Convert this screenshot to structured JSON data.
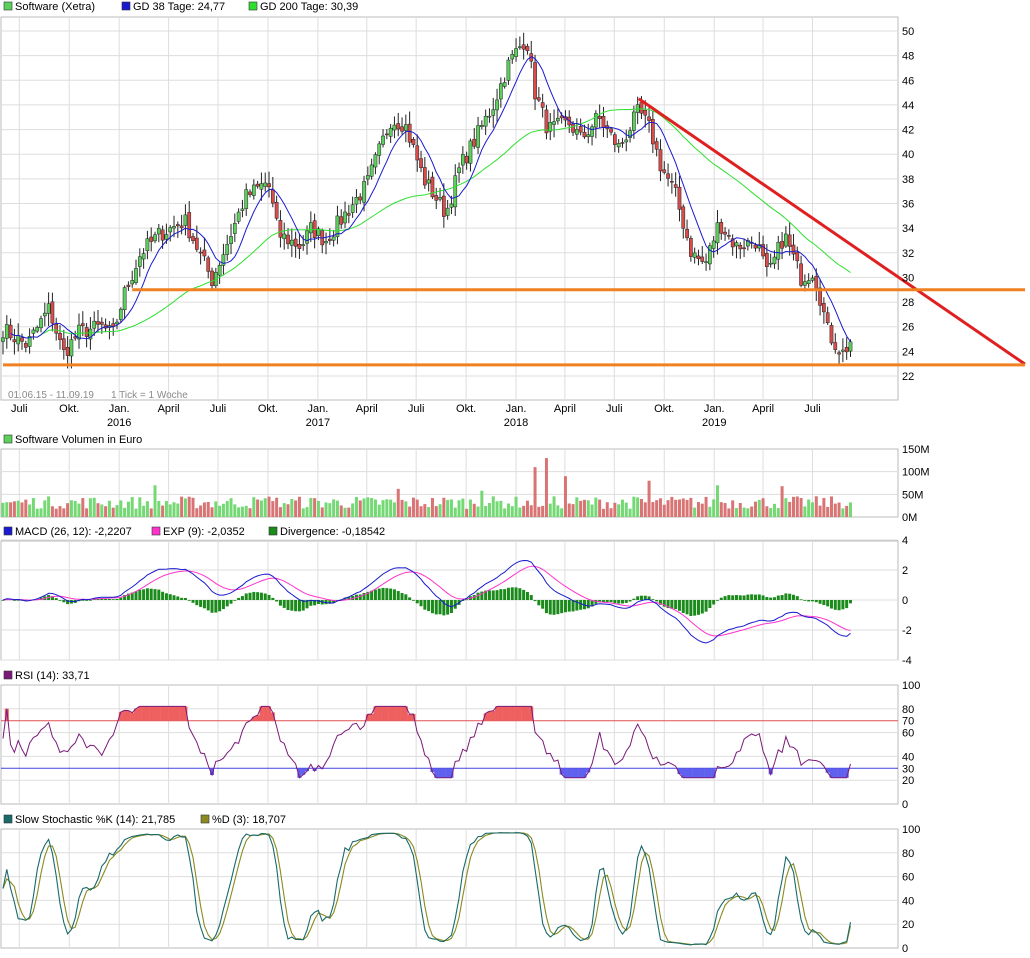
{
  "colors": {
    "up_candle": "#5ccf5c",
    "down_candle": "#d94c4c",
    "gd38": "#1a1ad0",
    "gd200": "#2ee02e",
    "trend_red": "#e02020",
    "support_orange": "#f08020",
    "macd": "#1a1ad0",
    "exp": "#ff33cc",
    "divergence": "#1a8a1a",
    "rsi": "#7a1a7a",
    "rsi_70": "#e05050",
    "rsi_30": "#4040e0",
    "stoch_k": "#1a6a6a",
    "stoch_d": "#8a8a20",
    "grid": "#dddddd"
  },
  "panels": {
    "price": {
      "legend": [
        {
          "label": "Software (Xetra)",
          "color": "#5ccf5c"
        },
        {
          "label": "GD 38 Tage: 24,77",
          "color": "#1a1ad0"
        },
        {
          "label": "GD 200 Tage: 30,39",
          "color": "#2ee02e"
        }
      ],
      "y_ticks": [
        "50",
        "48",
        "46",
        "44",
        "42",
        "40",
        "38",
        "36",
        "34",
        "32",
        "30",
        "28",
        "26",
        "24",
        "22"
      ],
      "date_range": "01.06.15 - 11.09.19",
      "tick_note": "1 Tick = 1 Woche",
      "x_labels": [
        "Juli",
        "Okt.",
        "Jan.",
        "April",
        "Juli",
        "Okt.",
        "Jan.",
        "April",
        "Juli",
        "Okt.",
        "Jan.",
        "April",
        "Juli",
        "Okt.",
        "Jan.",
        "April",
        "Juli"
      ],
      "year_labels": [
        "2016",
        "2017",
        "2018",
        "2019"
      ]
    },
    "volume": {
      "legend": [
        {
          "label": "Software Volumen in Euro",
          "color": "#5ccf5c"
        }
      ],
      "y_ticks": [
        "150M",
        "100M",
        "50M",
        "0M"
      ]
    },
    "macd": {
      "legend": [
        {
          "label": "MACD (26, 12): -2,2207",
          "color": "#1a1ad0"
        },
        {
          "label": "EXP (9): -2,0352",
          "color": "#ff33cc"
        },
        {
          "label": "Divergence: -0,18542",
          "color": "#1a8a1a"
        }
      ],
      "y_ticks": [
        "4",
        "2",
        "0",
        "-2",
        "-4"
      ]
    },
    "rsi": {
      "legend": [
        {
          "label": "RSI (14): 33,71",
          "color": "#7a1a7a"
        }
      ],
      "y_ticks": [
        "100",
        "80",
        "70",
        "60",
        "40",
        "30",
        "20",
        "0"
      ]
    },
    "stoch": {
      "legend": [
        {
          "label": "Slow Stochastic %K (14): 21,785",
          "color": "#1a6a6a"
        },
        {
          "label": "%D (3): 18,707",
          "color": "#8a8a20"
        }
      ],
      "y_ticks": [
        "100",
        "80",
        "60",
        "40",
        "20",
        "0"
      ]
    }
  },
  "chart_data": [
    {
      "type": "candlestick",
      "title": "Software (Xetra)",
      "x_range": [
        "01.06.15",
        "11.09.19"
      ],
      "ylim": [
        21,
        51.5
      ],
      "anchor_closes": [
        [
          "2015-06-01",
          25.8
        ],
        [
          "2015-07-15",
          24.5
        ],
        [
          "2015-08-25",
          27.5
        ],
        [
          "2015-09-20",
          23.8
        ],
        [
          "2015-10-20",
          25.6
        ],
        [
          "2015-12-01",
          26.0
        ],
        [
          "2015-12-20",
          25.3
        ],
        [
          "2016-01-10",
          28.6
        ],
        [
          "2016-02-10",
          32.0
        ],
        [
          "2016-03-15",
          33.5
        ],
        [
          "2016-05-01",
          34.6
        ],
        [
          "2016-06-20",
          29.8
        ],
        [
          "2016-07-20",
          33.0
        ],
        [
          "2016-08-20",
          36.5
        ],
        [
          "2016-10-01",
          37.8
        ],
        [
          "2016-10-20",
          33.5
        ],
        [
          "2016-12-01",
          32.5
        ],
        [
          "2016-12-20",
          34.0
        ],
        [
          "2017-01-15",
          33.0
        ],
        [
          "2017-02-01",
          34.0
        ],
        [
          "2017-04-01",
          37.5
        ],
        [
          "2017-05-15",
          42.8
        ],
        [
          "2017-06-10",
          42.5
        ],
        [
          "2017-07-15",
          38.0
        ],
        [
          "2017-08-25",
          35.2
        ],
        [
          "2017-09-20",
          39.0
        ],
        [
          "2017-10-15",
          41.0
        ],
        [
          "2017-11-20",
          44.0
        ],
        [
          "2017-12-20",
          47.5
        ],
        [
          "2018-01-20",
          49.5
        ],
        [
          "2018-02-05",
          45.0
        ],
        [
          "2018-03-01",
          42.0
        ],
        [
          "2018-04-10",
          42.5
        ],
        [
          "2018-05-01",
          41.2
        ],
        [
          "2018-06-01",
          43.0
        ],
        [
          "2018-07-10",
          40.5
        ],
        [
          "2018-08-15",
          43.5
        ],
        [
          "2018-09-05",
          42.0
        ],
        [
          "2018-09-25",
          39.0
        ],
        [
          "2018-10-20",
          37.0
        ],
        [
          "2018-11-20",
          32.0
        ],
        [
          "2018-12-15",
          31.0
        ],
        [
          "2019-01-10",
          34.5
        ],
        [
          "2019-02-10",
          32.5
        ],
        [
          "2019-03-20",
          33.0
        ],
        [
          "2019-04-10",
          30.0
        ],
        [
          "2019-05-10",
          33.5
        ],
        [
          "2019-06-10",
          30.0
        ],
        [
          "2019-07-01",
          30.5
        ],
        [
          "2019-07-12",
          29.0
        ],
        [
          "2019-07-30",
          25.5
        ],
        [
          "2019-08-25",
          23.8
        ],
        [
          "2019-09-11",
          24.9
        ]
      ],
      "gd38_last": 24.77,
      "gd200_last": 30.39,
      "trendlines": [
        {
          "name": "Abwärtstrend",
          "from": [
            "2018-08-15",
            44.5
          ],
          "to": [
            "2019-11-30",
            22.8
          ]
        },
        {
          "name": "Widerstand",
          "from": [
            "2016-01-25",
            29.0
          ],
          "to": [
            "2019-11-30",
            29.0
          ]
        },
        {
          "name": "Unterstützung",
          "from": [
            "2015-06-01",
            22.9
          ],
          "to": [
            "2019-11-30",
            22.9
          ]
        }
      ]
    },
    {
      "type": "bar",
      "title": "Software Volumen in Euro",
      "ylim": [
        0,
        150
      ],
      "unit": "M"
    },
    {
      "type": "line",
      "title": "MACD (26, 12)",
      "ylim": [
        -4,
        4
      ],
      "series": [
        {
          "name": "MACD (26, 12)",
          "last": -2.2207
        },
        {
          "name": "EXP (9)",
          "last": -2.0352
        },
        {
          "name": "Divergence",
          "last": -0.18542
        }
      ]
    },
    {
      "type": "line",
      "title": "RSI (14)",
      "ylim": [
        0,
        100
      ],
      "levels": [
        70,
        30
      ],
      "series": [
        {
          "name": "RSI (14)",
          "last": 33.71
        }
      ]
    },
    {
      "type": "line",
      "title": "Slow Stochastic",
      "ylim": [
        0,
        100
      ],
      "series": [
        {
          "name": "Slow Stochastic %K (14)",
          "last": 21.785
        },
        {
          "name": "%D (3)",
          "last": 18.707
        }
      ]
    }
  ]
}
